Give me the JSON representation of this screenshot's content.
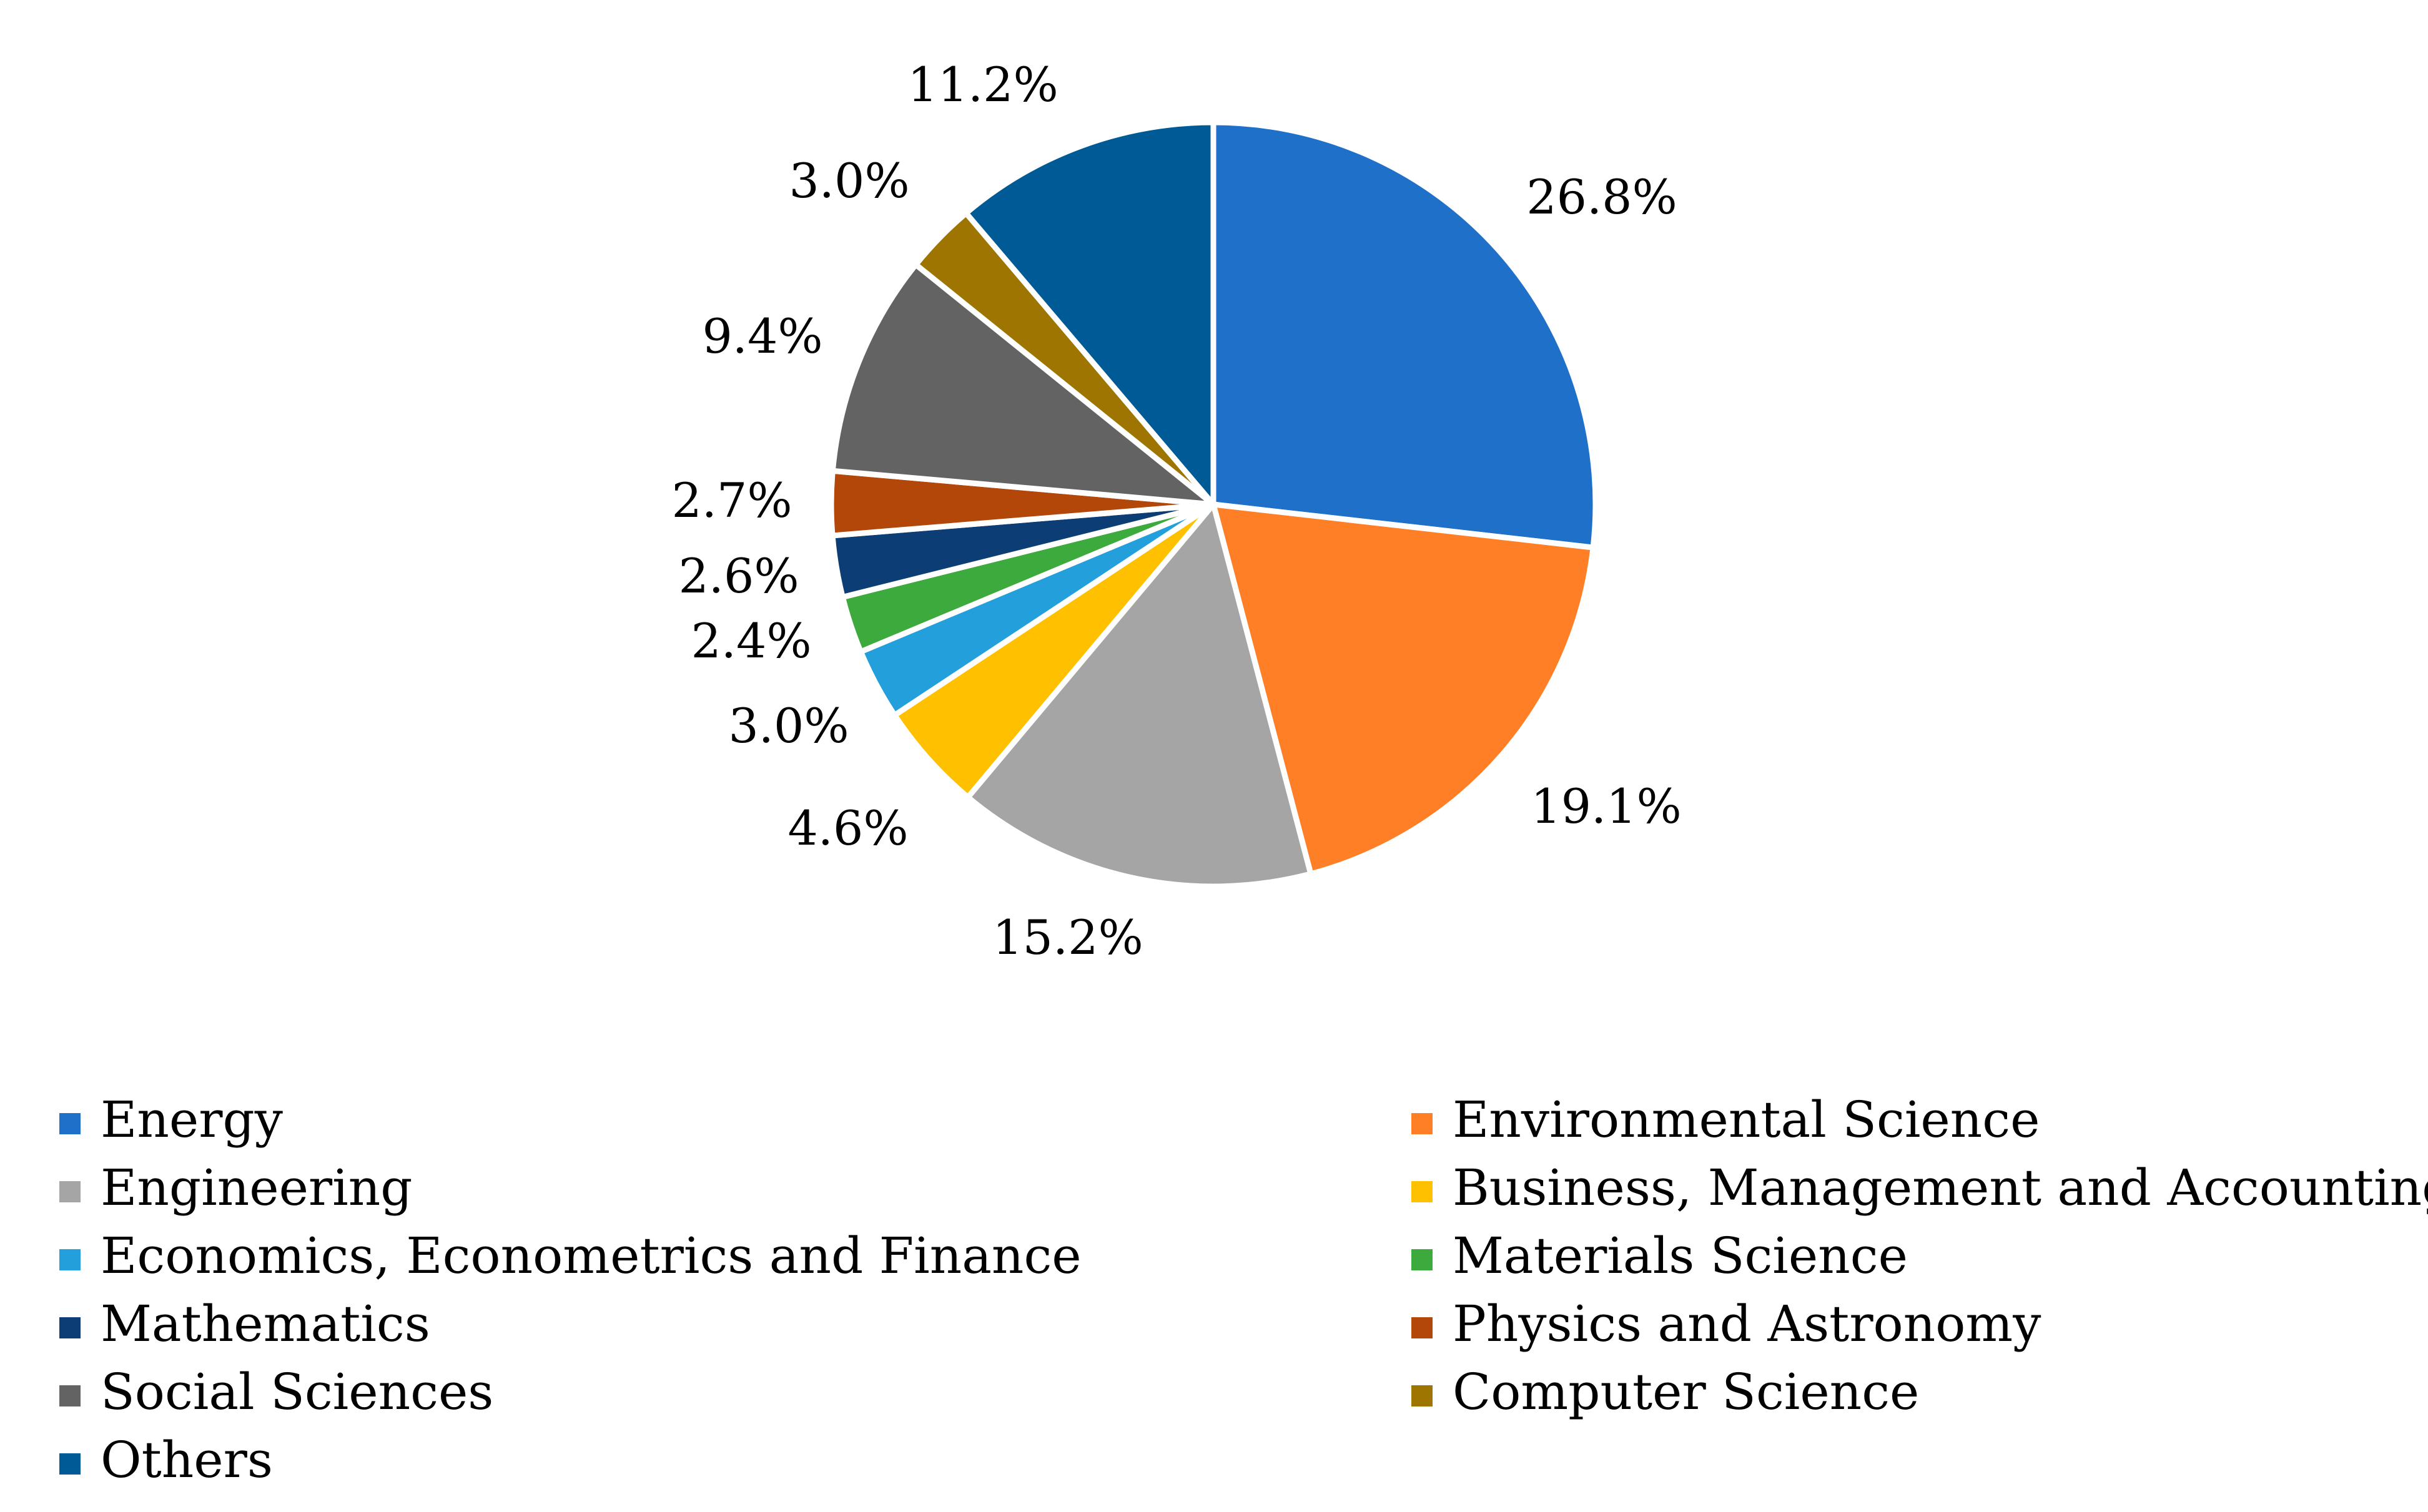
{
  "chart_data": {
    "type": "pie",
    "title": "",
    "start_angle_deg": 0,
    "direction": "clockwise",
    "legend_position": "bottom",
    "slices": [
      {
        "label": "Energy",
        "value": 26.8,
        "display": "26.8%",
        "color": "#1F70C8"
      },
      {
        "label": "Environmental Science",
        "value": 19.1,
        "display": "19.1%",
        "color": "#FF7F27"
      },
      {
        "label": "Engineering",
        "value": 15.2,
        "display": "15.2%",
        "color": "#A5A5A5"
      },
      {
        "label": "Business, Management and Accounting",
        "value": 4.6,
        "display": "4.6%",
        "color": "#FFC000"
      },
      {
        "label": "Economics, Econometrics and Finance",
        "value": 3.0,
        "display": "3.0%",
        "color": "#23A0DC"
      },
      {
        "label": "Materials Science",
        "value": 2.4,
        "display": "2.4%",
        "color": "#3DAA3D"
      },
      {
        "label": "Mathematics",
        "value": 2.6,
        "display": "2.6%",
        "color": "#0D3D75"
      },
      {
        "label": "Physics and Astronomy",
        "value": 2.7,
        "display": "2.7%",
        "color": "#B3470A"
      },
      {
        "label": "Social Sciences",
        "value": 9.4,
        "display": "9.4%",
        "color": "#636363"
      },
      {
        "label": "Computer Science",
        "value": 3.0,
        "display": "3.0%",
        "color": "#9E7500"
      },
      {
        "label": "Others",
        "value": 11.2,
        "display": "11.2%",
        "color": "#005A95"
      }
    ]
  }
}
